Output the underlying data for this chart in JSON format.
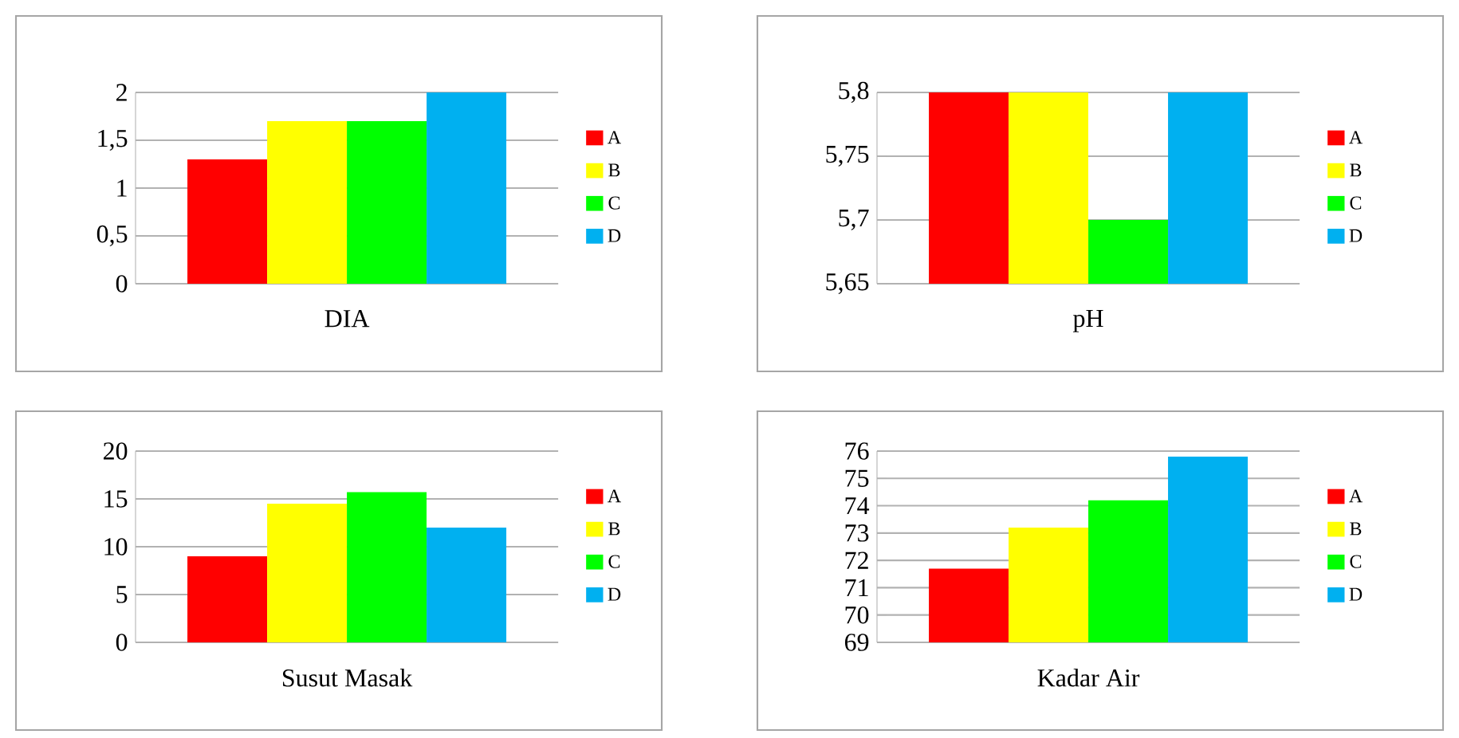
{
  "chart_data": [
    {
      "type": "bar",
      "xlabel": "DIA",
      "categories": [
        null
      ],
      "ylim": [
        0,
        2
      ],
      "yticks": [
        0,
        {
          "value": 0.5,
          "label": "0,5"
        },
        1,
        {
          "value": 1.5,
          "label": "1,5"
        },
        2
      ],
      "grid": "y",
      "legend": "right",
      "series": [
        {
          "name": "A",
          "color": "#ff0000",
          "values": [
            1.3
          ]
        },
        {
          "name": "B",
          "color": "#ffff00",
          "values": [
            1.7
          ]
        },
        {
          "name": "C",
          "color": "#00ff00",
          "values": [
            1.7
          ]
        },
        {
          "name": "D",
          "color": "#00b0f0",
          "values": [
            2.0
          ]
        }
      ]
    },
    {
      "type": "bar",
      "xlabel": "pH",
      "categories": [
        null
      ],
      "ylim": [
        5.65,
        5.8
      ],
      "yticks": [
        {
          "value": 5.65,
          "label": "5,65"
        },
        {
          "value": 5.7,
          "label": "5,7"
        },
        {
          "value": 5.75,
          "label": "5,75"
        },
        {
          "value": 5.8,
          "label": "5,8"
        }
      ],
      "grid": "y",
      "legend": "right",
      "series": [
        {
          "name": "A",
          "color": "#ff0000",
          "values": [
            5.8
          ]
        },
        {
          "name": "B",
          "color": "#ffff00",
          "values": [
            5.8
          ]
        },
        {
          "name": "C",
          "color": "#00ff00",
          "values": [
            5.7
          ]
        },
        {
          "name": "D",
          "color": "#00b0f0",
          "values": [
            5.8
          ]
        }
      ]
    },
    {
      "type": "bar",
      "xlabel": "Susut Masak",
      "categories": [
        null
      ],
      "ylim": [
        0,
        20
      ],
      "yticks": [
        0,
        5,
        10,
        15,
        20
      ],
      "grid": "y",
      "legend": "right",
      "series": [
        {
          "name": "A",
          "color": "#ff0000",
          "values": [
            9
          ]
        },
        {
          "name": "B",
          "color": "#ffff00",
          "values": [
            14.5
          ]
        },
        {
          "name": "C",
          "color": "#00ff00",
          "values": [
            15.7
          ]
        },
        {
          "name": "D",
          "color": "#00b0f0",
          "values": [
            12
          ]
        }
      ]
    },
    {
      "type": "bar",
      "xlabel": "Kadar Air",
      "categories": [
        null
      ],
      "ylim": [
        69,
        76
      ],
      "yticks": [
        69,
        70,
        71,
        72,
        73,
        74,
        75,
        76
      ],
      "grid": "y",
      "legend": "right",
      "series": [
        {
          "name": "A",
          "color": "#ff0000",
          "values": [
            71.7
          ]
        },
        {
          "name": "B",
          "color": "#ffff00",
          "values": [
            73.2
          ]
        },
        {
          "name": "C",
          "color": "#00ff00",
          "values": [
            74.2
          ]
        },
        {
          "name": "D",
          "color": "#00b0f0",
          "values": [
            75.8
          ]
        }
      ]
    }
  ]
}
